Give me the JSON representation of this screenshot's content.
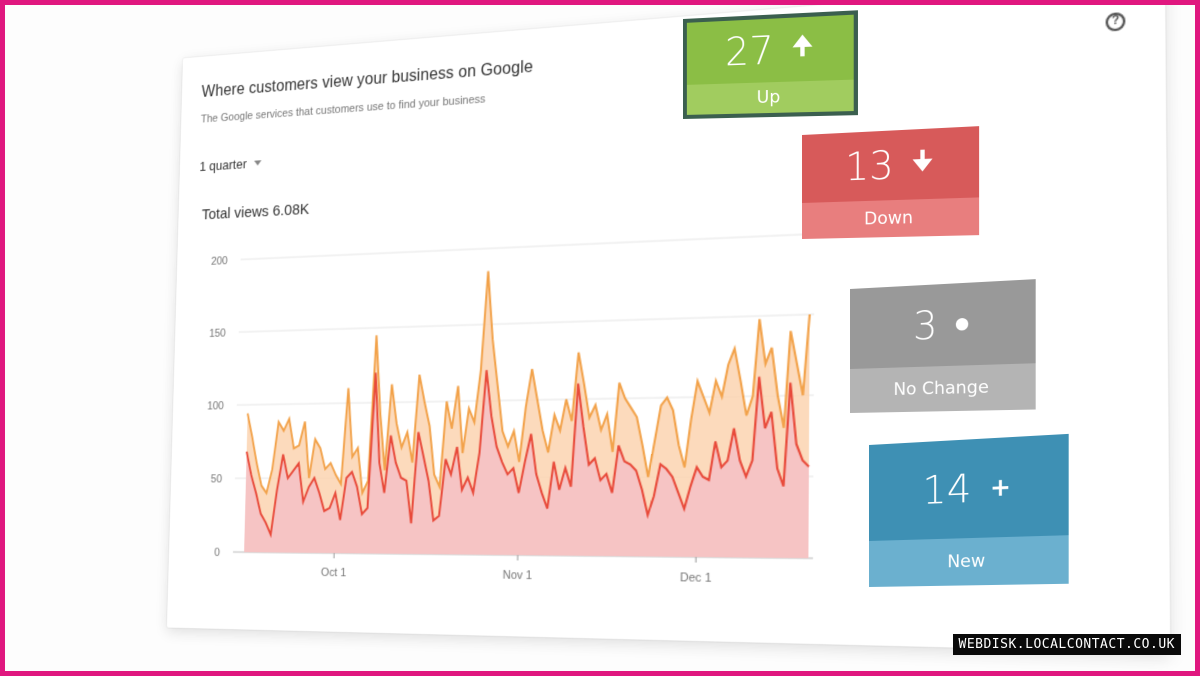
{
  "card": {
    "title": "Where customers view your business on Google",
    "subtitle": "The Google services that customers use to find your business",
    "help_icon": "question-circle-icon",
    "period": "1 quarter",
    "total_views": "Total views 6.08K"
  },
  "chart_data": {
    "type": "area",
    "x_ticks": [
      "Oct 1",
      "Nov 1",
      "Dec 1"
    ],
    "y_ticks": [
      "0",
      "50",
      "100",
      "150",
      "200"
    ],
    "ylim": [
      0,
      200
    ],
    "grid": true,
    "series": [
      {
        "color": "#e84a3a",
        "values": [
          68,
          52,
          40,
          26,
          20,
          12,
          42,
          66,
          50,
          55,
          60,
          34,
          44,
          50,
          40,
          28,
          30,
          40,
          22,
          50,
          54,
          44,
          26,
          30,
          120,
          60,
          40,
          78,
          60,
          50,
          48,
          20,
          80,
          64,
          48,
          22,
          25,
          62,
          52,
          70,
          42,
          50,
          40,
          66,
          120,
          90,
          70,
          60,
          52,
          56,
          40,
          60,
          78,
          52,
          40,
          30,
          60,
          42,
          56,
          44,
          110,
          82,
          58,
          62,
          48,
          52,
          40,
          70,
          60,
          58,
          54,
          42,
          26,
          38,
          58,
          55,
          50,
          40,
          30,
          44,
          56,
          50,
          48,
          72,
          56,
          60,
          80,
          60,
          50,
          60,
          112,
          80,
          90,
          55,
          44,
          108,
          70,
          60,
          56
        ]
      },
      {
        "color": "#f2a24a",
        "values": [
          94,
          78,
          60,
          45,
          40,
          56,
          88,
          82,
          90,
          70,
          72,
          88,
          50,
          76,
          70,
          56,
          60,
          52,
          46,
          110,
          64,
          70,
          40,
          48,
          145,
          92,
          55,
          112,
          86,
          70,
          80,
          60,
          118,
          100,
          84,
          52,
          44,
          100,
          82,
          110,
          66,
          95,
          86,
          120,
          185,
          140,
          110,
          80,
          70,
          80,
          60,
          95,
          120,
          100,
          80,
          66,
          90,
          80,
          100,
          86,
          130,
          110,
          88,
          96,
          80,
          90,
          66,
          110,
          100,
          94,
          88,
          70,
          50,
          72,
          95,
          100,
          92,
          70,
          56,
          86,
          110,
          100,
          90,
          110,
          100,
          120,
          130,
          110,
          88,
          100,
          148,
          120,
          130,
          100,
          80,
          140,
          120,
          100,
          150
        ]
      }
    ]
  },
  "tiles": {
    "up": {
      "value": "27",
      "label": "Up",
      "icon": "arrow-up-icon",
      "glyph": "🠉",
      "color": "#8bbe45"
    },
    "down": {
      "value": "13",
      "label": "Down",
      "icon": "arrow-down-icon",
      "glyph": "🠋",
      "color": "#d75a5a"
    },
    "nochange": {
      "value": "3",
      "label": "No Change",
      "icon": "dot-icon",
      "color": "#999999"
    },
    "new": {
      "value": "14",
      "label": "New",
      "icon": "plus-icon",
      "glyph": "+",
      "color": "#3e90b4"
    }
  },
  "watermark": "WEBDISK.LOCALCONTACT.CO.UK"
}
